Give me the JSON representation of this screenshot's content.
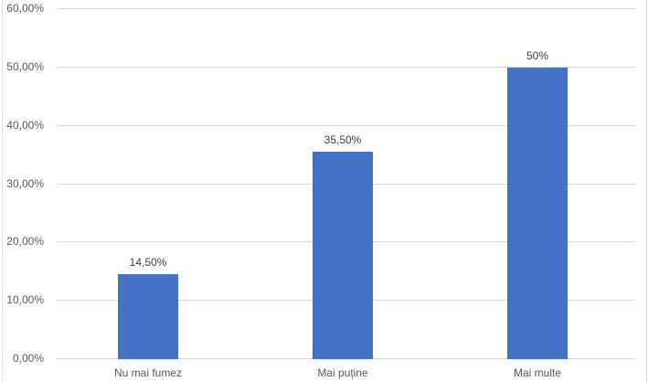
{
  "chart_data": {
    "type": "bar",
    "title": "",
    "xlabel": "",
    "ylabel": "",
    "categories": [
      "Nu mai fumez",
      "Mai puține",
      "Mai multe"
    ],
    "values": [
      14.5,
      35.5,
      50
    ],
    "data_labels": [
      "14,50%",
      "35,50%",
      "50%"
    ],
    "y_ticks": [
      {
        "value": 60,
        "label": "60,00%"
      },
      {
        "value": 50,
        "label": "50,00%"
      },
      {
        "value": 40,
        "label": "40,00%"
      },
      {
        "value": 30,
        "label": "30,00%"
      },
      {
        "value": 20,
        "label": "20,00%"
      },
      {
        "value": 10,
        "label": "10,00%"
      },
      {
        "value": 0,
        "label": "0,00%"
      }
    ],
    "ylim": [
      0,
      60
    ],
    "grid": true,
    "legend": "none",
    "colors": {
      "bar_fill": "#4472C4",
      "gridline": "#D9D9D9",
      "axis_line": "#D6D6D6",
      "tick_text": "#595959",
      "category_text": "#595959",
      "data_label_text": "#404040",
      "sheet_border": "#DCDCDC",
      "background": "#FFFFFF"
    }
  }
}
